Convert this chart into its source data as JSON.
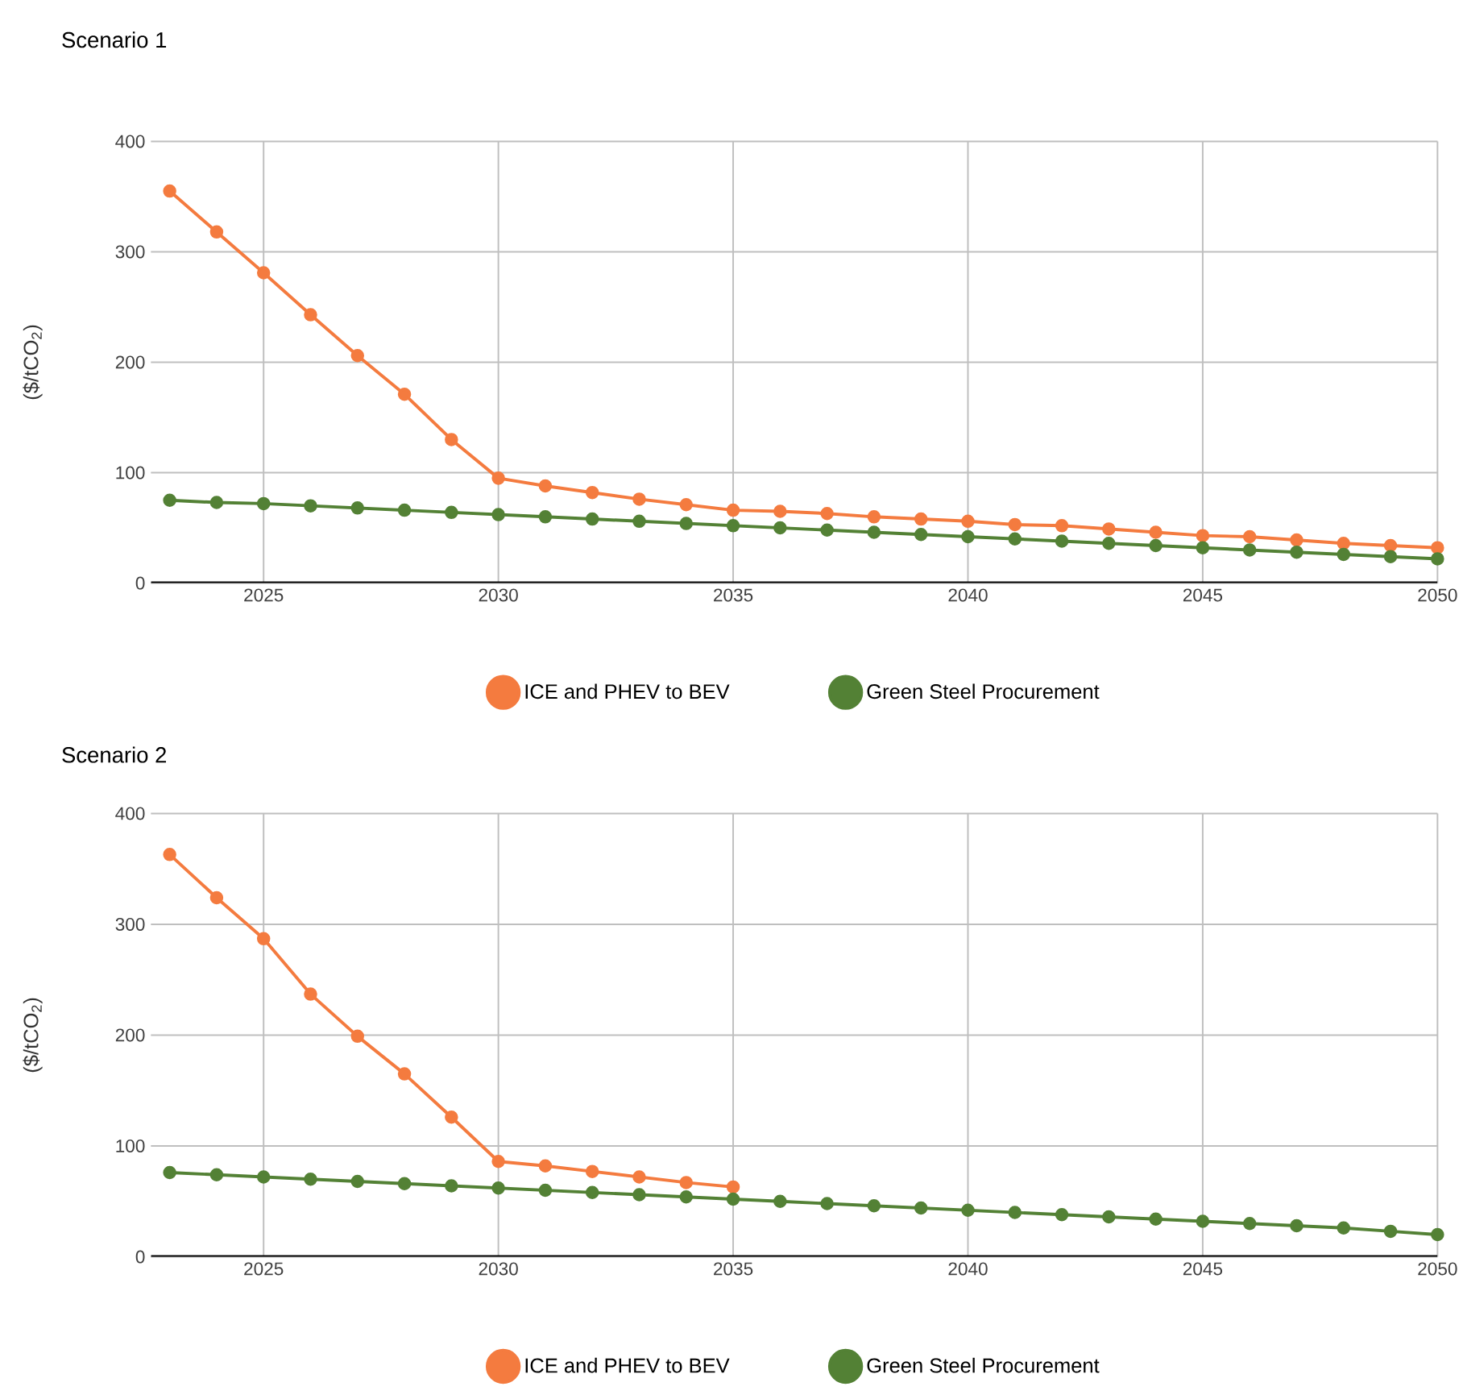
{
  "chart_data": [
    {
      "type": "line",
      "title": "Scenario 1",
      "ylabel": "($/tCO$_{2}$)",
      "x": [
        2023,
        2024,
        2025,
        2026,
        2027,
        2028,
        2029,
        2030,
        2031,
        2032,
        2033,
        2034,
        2035,
        2036,
        2037,
        2038,
        2039,
        2040,
        2041,
        2042,
        2043,
        2044,
        2045,
        2046,
        2047,
        2048,
        2049,
        2050
      ],
      "series": [
        {
          "name": "ICE and PHEV to BEV",
          "color": "#f47b3f",
          "values": [
            355,
            318,
            281,
            243,
            206,
            171,
            130,
            95,
            88,
            82,
            76,
            71,
            66,
            65,
            63,
            60,
            58,
            56,
            53,
            52,
            49,
            46,
            43,
            42,
            39,
            36,
            34,
            32
          ]
        },
        {
          "name": "Green Steel Procurement",
          "color": "#538135",
          "values": [
            75,
            73,
            72,
            70,
            68,
            66,
            64,
            62,
            60,
            58,
            56,
            54,
            52,
            50,
            48,
            46,
            44,
            42,
            40,
            38,
            36,
            34,
            32,
            30,
            28,
            26,
            24,
            22
          ]
        }
      ],
      "xlim": [
        2022.6,
        2050
      ],
      "ylim": [
        0,
        400
      ],
      "xticks": [
        2025,
        2030,
        2035,
        2040,
        2045,
        2050
      ],
      "yticks": [
        0,
        100,
        200,
        300,
        400
      ],
      "grid": true,
      "legend": "bottom",
      "marker": "circle",
      "line_style": "solid"
    },
    {
      "type": "line",
      "title": "Scenario 2",
      "ylabel": "($/tCO$_{2}$)",
      "x": [
        2023,
        2024,
        2025,
        2026,
        2027,
        2028,
        2029,
        2030,
        2031,
        2032,
        2033,
        2034,
        2035,
        2036,
        2037,
        2038,
        2039,
        2040,
        2041,
        2042,
        2043,
        2044,
        2045,
        2046,
        2047,
        2048,
        2049,
        2050
      ],
      "series": [
        {
          "name": "ICE and PHEV to BEV",
          "color": "#f47b3f",
          "values": [
            363,
            324,
            287,
            237,
            199,
            165,
            126,
            86,
            82,
            77,
            72,
            67,
            63,
            null,
            null,
            null,
            null,
            null,
            null,
            null,
            null,
            null,
            null,
            null,
            null,
            null,
            null,
            null
          ]
        },
        {
          "name": "Green Steel Procurement",
          "color": "#538135",
          "values": [
            76,
            74,
            72,
            70,
            68,
            66,
            64,
            62,
            60,
            58,
            56,
            54,
            52,
            50,
            48,
            46,
            44,
            42,
            40,
            38,
            36,
            34,
            32,
            30,
            28,
            26,
            23,
            20
          ]
        }
      ],
      "xlim": [
        2022.6,
        2050
      ],
      "ylim": [
        0,
        400
      ],
      "xticks": [
        2025,
        2030,
        2035,
        2040,
        2045,
        2050
      ],
      "yticks": [
        0,
        100,
        200,
        300,
        400
      ],
      "grid": true,
      "legend": "bottom",
      "marker": "circle",
      "line_style": "solid"
    }
  ]
}
